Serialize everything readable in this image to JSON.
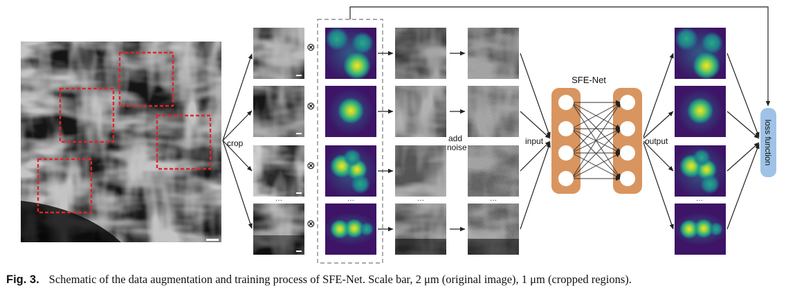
{
  "figure": {
    "network_title": "SFE-Net",
    "crop_label": "crop",
    "add_noise_label_line1": "add",
    "add_noise_label_line2": "noise",
    "input_label": "input",
    "output_label": "output",
    "loss_label": "loss function",
    "multiply_symbol": "⊗",
    "ellipsis": "···",
    "colors": {
      "network_block": "#d9955f",
      "loss_box": "#9fc3e6",
      "arrow": "#222222",
      "crop_box": "#e0242b",
      "heatmap_low": "#3d1466",
      "heatmap_mid": "#1f8f8c",
      "heatmap_high": "#f0e31c"
    }
  },
  "caption": {
    "label": "Fig. 3.",
    "text": "Schematic of the data augmentation and training process of SFE-Net. Scale bar, 2 μm (original image), 1 μm (cropped regions)."
  }
}
